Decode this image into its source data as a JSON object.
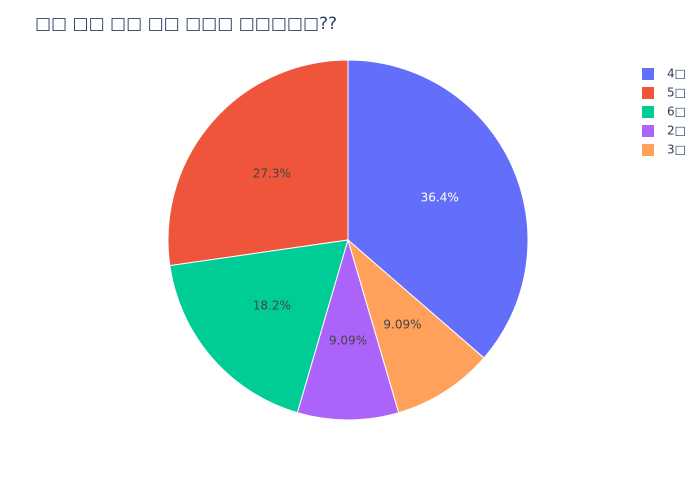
{
  "chart_data": {
    "type": "pie",
    "title": "□□ □□ □□ □□ □□□ □□□□□??",
    "categories": [
      "4□",
      "5□",
      "6□",
      "2□",
      "3□"
    ],
    "values": [
      36.4,
      27.3,
      18.2,
      9.09,
      9.09
    ],
    "value_labels": [
      "36.4%",
      "27.3%",
      "18.2%",
      "9.09%",
      "9.09%"
    ],
    "colors": [
      "#636efa",
      "#EF553B",
      "#00cc96",
      "#ab63fa",
      "#FFA15A"
    ],
    "legend_position": "top-right"
  }
}
